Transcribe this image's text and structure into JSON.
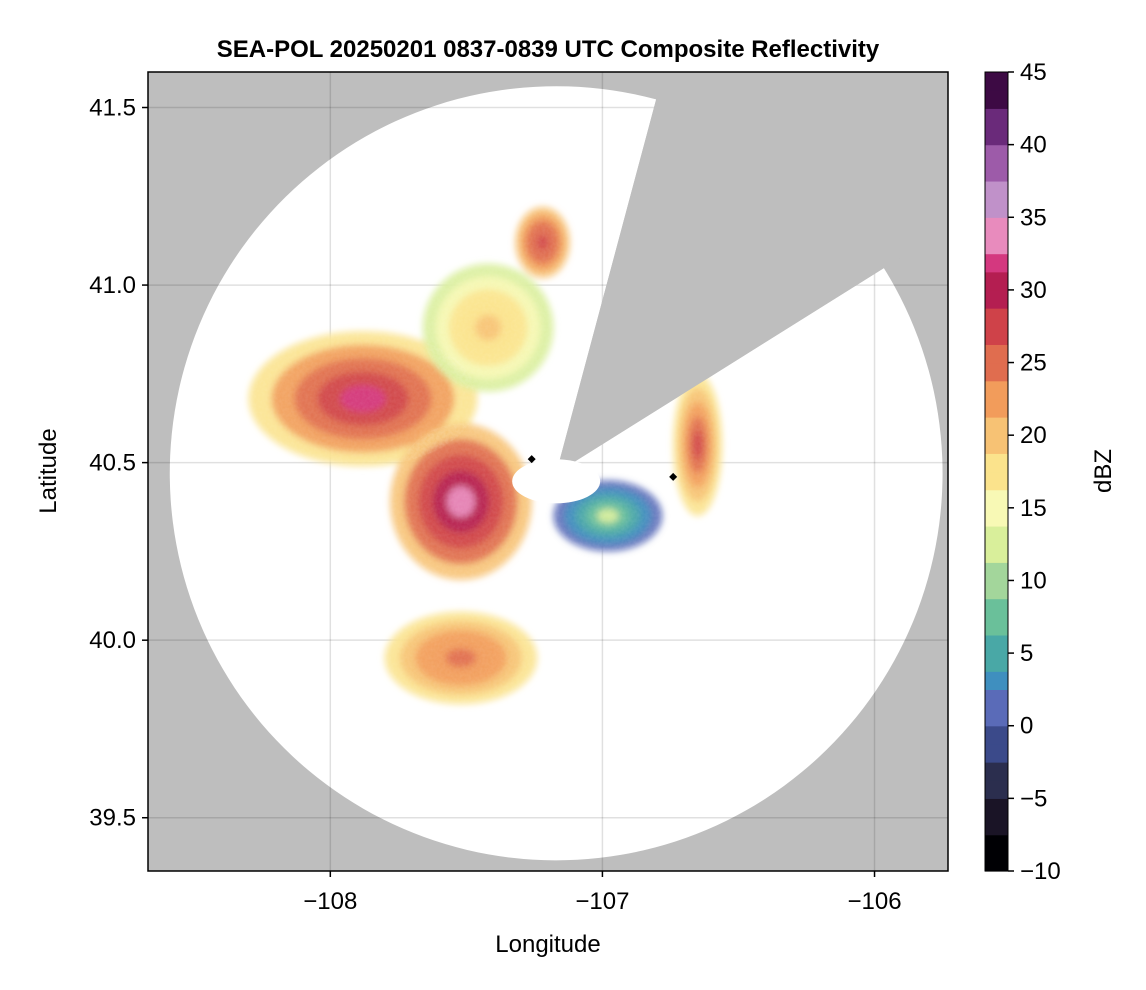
{
  "chart_data": {
    "type": "heatmap",
    "title": "SEA-POL 20250201 0837-0839 UTC Composite Reflectivity",
    "xlabel": "Longitude",
    "ylabel": "Latitude",
    "xlim": [
      -108.67,
      -105.73
    ],
    "ylim": [
      39.35,
      41.6
    ],
    "x_ticks": [
      -108,
      -107,
      -106
    ],
    "x_tick_labels": [
      "−108",
      "−107",
      "−106"
    ],
    "y_ticks": [
      39.5,
      40.0,
      40.5,
      41.0,
      41.5
    ],
    "y_tick_labels": [
      "39.5",
      "40.0",
      "40.5",
      "41.0",
      "41.5"
    ],
    "grid": true,
    "background_color": "#bebebe",
    "radar": {
      "center_lon": -107.17,
      "center_lat": 40.47,
      "max_range_lon_deg": 1.42,
      "max_range_lat_deg": 1.09,
      "blocked_sector": {
        "bearing_from_deg": 15,
        "bearing_to_deg": 58
      },
      "markers": [
        {
          "lon": -106.74,
          "lat": 40.46,
          "color": "#000000"
        },
        {
          "lon": -107.26,
          "lat": 40.51,
          "color": "#000000"
        }
      ]
    },
    "reflectivity_regions": [
      {
        "region": "northwest band",
        "dbz_range": [
          18,
          31
        ],
        "peak_dbz": 31,
        "peak_at": [
          -107.88,
          40.68
        ]
      },
      {
        "region": "south-central core",
        "dbz_range": [
          20,
          34
        ],
        "peak_dbz": 34,
        "peak_at": [
          -107.52,
          40.39
        ]
      },
      {
        "region": "north light echoes",
        "dbz_range": [
          13,
          20
        ],
        "peak_dbz": 20,
        "peak_at": [
          -107.42,
          40.88
        ]
      },
      {
        "region": "north edge cells",
        "dbz_range": [
          20,
          27
        ],
        "peak_dbz": 27,
        "peak_at": [
          -107.22,
          41.12
        ]
      },
      {
        "region": "east cells",
        "dbz_range": [
          17,
          28
        ],
        "peak_dbz": 28,
        "peak_at": [
          -106.65,
          40.55
        ]
      },
      {
        "region": "near-radar weak echoes",
        "dbz_range": [
          0,
          12
        ],
        "peak_dbz": 12,
        "peak_at": [
          -106.98,
          40.35
        ]
      },
      {
        "region": "southwest cells",
        "dbz_range": [
          18,
          25
        ],
        "peak_dbz": 25,
        "peak_at": [
          -107.52,
          39.95
        ]
      }
    ],
    "colorbar": {
      "label": "dBZ",
      "min": -10,
      "max": 45,
      "step": 1.25,
      "ticks": [
        -10,
        -5,
        0,
        5,
        10,
        15,
        20,
        25,
        30,
        35,
        40,
        45
      ],
      "tick_labels": [
        "−10",
        "−5",
        "0",
        "5",
        "10",
        "15",
        "20",
        "25",
        "30",
        "35",
        "40",
        "45"
      ],
      "colormap": [
        "#000004",
        "#1a1426",
        "#2b2e4e",
        "#3b4a8a",
        "#5a6bb8",
        "#3f8fbf",
        "#49a8a6",
        "#6ac09a",
        "#a3d69b",
        "#d9ef9b",
        "#f8f9b5",
        "#fbe38c",
        "#f7c274",
        "#f29c5b",
        "#e06d4f",
        "#cf4249",
        "#b41e51",
        "#d4387f",
        "#e88bbd",
        "#c091c9",
        "#9d5ba9",
        "#6a2a7a",
        "#3d0a44"
      ]
    }
  }
}
